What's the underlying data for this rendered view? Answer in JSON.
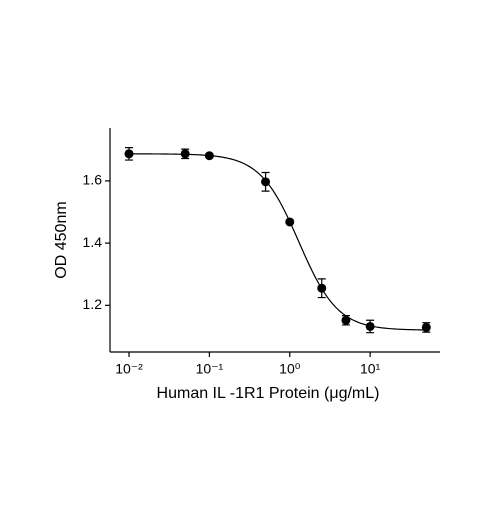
{
  "chart_data": {
    "type": "scatter",
    "x_label": "Human IL -1R1 Protein (μg/mL)",
    "y_label": "OD 450nm",
    "x": [
      0.01,
      0.05,
      0.1,
      0.5,
      1,
      2.5,
      5,
      10,
      50
    ],
    "values": [
      1.687,
      1.687,
      1.681,
      1.597,
      1.468,
      1.255,
      1.152,
      1.132,
      1.129
    ],
    "errors": [
      0.02,
      0.015,
      0.005,
      0.03,
      0.005,
      0.03,
      0.015,
      0.02,
      0.015
    ],
    "color": "#000000",
    "fit": {
      "top": 1.687,
      "bottom": 1.12,
      "ec50": 1.3,
      "hill": 1.8
    },
    "xscale": "log",
    "xlim": [
      0.0058,
      74
    ],
    "ylim": [
      1.05,
      1.77
    ],
    "xticks": [
      {
        "value": 0.01,
        "label": "10⁻²"
      },
      {
        "value": 0.1,
        "label": "10⁻¹"
      },
      {
        "value": 1,
        "label": "10⁰"
      },
      {
        "value": 10,
        "label": "10¹"
      }
    ],
    "yticks": [
      1.2,
      1.4,
      1.6
    ]
  }
}
